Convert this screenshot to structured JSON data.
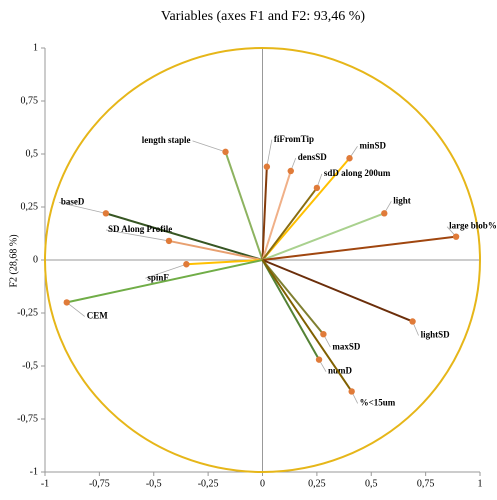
{
  "chart_data": {
    "type": "correlation-circle",
    "title": "Variables (axes F1 and F2: 93,46 %)",
    "y_label": "F2 (28,68 %)",
    "xlim": [
      -1,
      1
    ],
    "ylim": [
      -1,
      1
    ],
    "xticks": [
      -1,
      {
        "value": -0.75,
        "label": "-0,75"
      },
      {
        "value": -0.5,
        "label": "-0,5"
      },
      {
        "value": -0.25,
        "label": "-0,25"
      },
      0,
      {
        "value": 0.25,
        "label": "0,25"
      },
      {
        "value": 0.5,
        "label": "0,5"
      },
      {
        "value": 0.75,
        "label": "0,75"
      },
      1
    ],
    "yticks": [
      -1,
      {
        "value": -0.75,
        "label": "-0,75"
      },
      {
        "value": -0.5,
        "label": "-0,5"
      },
      {
        "value": -0.25,
        "label": "-0,25"
      },
      0,
      {
        "value": 0.25,
        "label": "0,25"
      },
      {
        "value": 0.5,
        "label": "0,5"
      },
      {
        "value": 0.75,
        "label": "0,75"
      },
      1
    ],
    "circle_color": "#e6b619",
    "marker_color": "#e07b39",
    "points": [
      {
        "name": "length staple",
        "x": -0.17,
        "y": 0.51,
        "color": "#8db360"
      },
      {
        "name": "fiFromTip",
        "x": 0.02,
        "y": 0.44,
        "color": "#843c0c"
      },
      {
        "name": "densSD",
        "x": 0.13,
        "y": 0.42,
        "color": "#f0b088"
      },
      {
        "name": "minSD",
        "x": 0.4,
        "y": 0.48,
        "color": "#ffc000"
      },
      {
        "name": "sdD along 200um",
        "x": 0.25,
        "y": 0.34,
        "color": "#8a6d10"
      },
      {
        "name": "light",
        "x": 0.56,
        "y": 0.22,
        "color": "#a9d18e"
      },
      {
        "name": "large blob%",
        "x": 0.89,
        "y": 0.11,
        "color": "#a0460f"
      },
      {
        "name": "baseD",
        "x": -0.72,
        "y": 0.22,
        "color": "#375623"
      },
      {
        "name": "SD Along Profile",
        "x": -0.43,
        "y": 0.09,
        "color": "#e8a070"
      },
      {
        "name": "spinF",
        "x": -0.35,
        "y": -0.02,
        "color": "#ffc000"
      },
      {
        "name": "CEM",
        "x": -0.9,
        "y": -0.2,
        "color": "#70ad47"
      },
      {
        "name": "lightSD",
        "x": 0.69,
        "y": -0.29,
        "color": "#6b2e0a"
      },
      {
        "name": "maxSD",
        "x": 0.28,
        "y": -0.35,
        "color": "#7f7f30"
      },
      {
        "name": "numD",
        "x": 0.26,
        "y": -0.47,
        "color": "#548235"
      },
      {
        "name": "%<15um",
        "x": 0.41,
        "y": -0.62,
        "color": "#806000"
      }
    ]
  }
}
